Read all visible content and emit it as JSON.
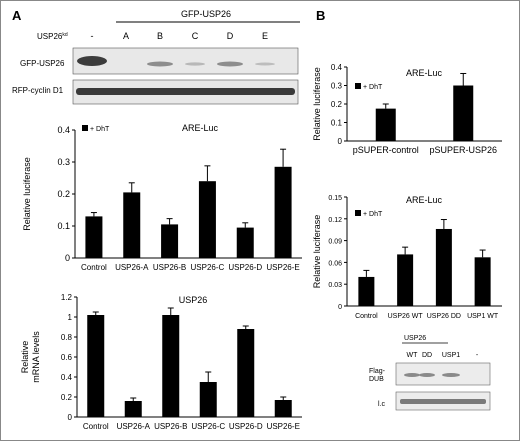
{
  "panels": {
    "a_label": "A",
    "b_label": "B"
  },
  "blot_a": {
    "header": "GFP-USP26",
    "row_label": "USP26kd",
    "lanes": [
      "-",
      "A",
      "B",
      "C",
      "D",
      "E"
    ],
    "rows": [
      "GFP-USP26",
      "RFP-cyclin D1"
    ]
  },
  "blot_b": {
    "header": "USP26",
    "lanes": [
      "WT",
      "DD",
      "USP1",
      "-"
    ],
    "rows": [
      "Flag-DUB",
      "l.c"
    ]
  },
  "chart_data": [
    {
      "id": "a-are",
      "type": "bar",
      "title": "ARE-Luc",
      "legend": "+ DhT",
      "ylabel": "Relative luciferase",
      "xlabel": "",
      "categories": [
        "Control",
        "USP26-A",
        "USP26-B",
        "USP26-C",
        "USP26-D",
        "USP26-E"
      ],
      "values": [
        0.13,
        0.205,
        0.105,
        0.24,
        0.095,
        0.285
      ],
      "errors": [
        0.012,
        0.03,
        0.018,
        0.048,
        0.015,
        0.055
      ],
      "ylim": [
        0,
        0.4
      ],
      "yticks": [
        "0",
        "0.1",
        "0.2",
        "0.3",
        "0.4"
      ],
      "color": "#000000"
    },
    {
      "id": "a-usp26",
      "type": "bar",
      "title": "USP26",
      "legend": "",
      "ylabel": "Relative mRNA levels",
      "xlabel": "",
      "categories": [
        "Control",
        "USP26-A",
        "USP26-B",
        "USP26-C",
        "USP26-D",
        "USP26-E"
      ],
      "values": [
        1.02,
        0.16,
        1.02,
        0.35,
        0.88,
        0.17
      ],
      "errors": [
        0.03,
        0.03,
        0.07,
        0.1,
        0.03,
        0.03
      ],
      "ylim": [
        0,
        1.2
      ],
      "yticks": [
        "0",
        "0.2",
        "0.4",
        "0.6",
        "0.8",
        "1",
        "1.2"
      ],
      "color": "#000000"
    },
    {
      "id": "b-psuper",
      "type": "bar",
      "title": "ARE-Luc",
      "legend": "+ DhT",
      "ylabel": "Relative luciferase",
      "xlabel": "",
      "categories": [
        "pSUPER-control",
        "pSUPER-USP26"
      ],
      "values": [
        0.175,
        0.3
      ],
      "errors": [
        0.025,
        0.065
      ],
      "ylim": [
        0,
        0.4
      ],
      "yticks": [
        "0",
        "0.1",
        "0.2",
        "0.3",
        "0.4"
      ],
      "color": "#000000"
    },
    {
      "id": "b-wt",
      "type": "bar",
      "title": "ARE-Luc",
      "legend": "+ DhT",
      "ylabel": "Relative luciferase",
      "xlabel": "",
      "categories": [
        "Control",
        "USP26 WT",
        "USP26 DD",
        "USP1 WT"
      ],
      "values": [
        0.04,
        0.071,
        0.106,
        0.067
      ],
      "errors": [
        0.009,
        0.01,
        0.013,
        0.01
      ],
      "ylim": [
        0,
        0.15
      ],
      "yticks": [
        "0",
        "0.03",
        "0.06",
        "0.09",
        "0.12",
        "0.15"
      ],
      "color": "#000000"
    }
  ]
}
